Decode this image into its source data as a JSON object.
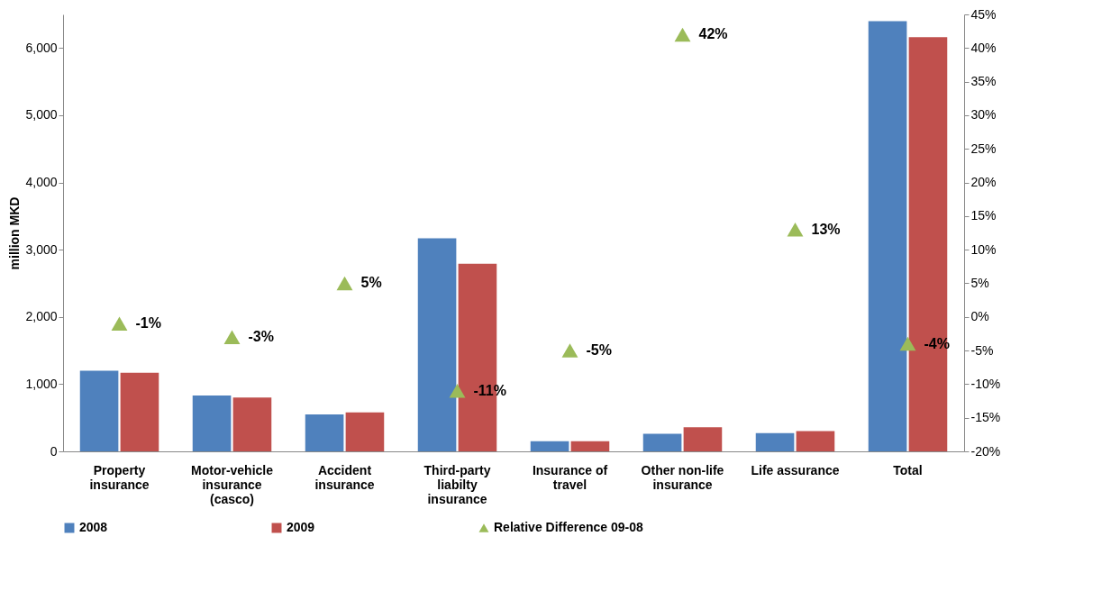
{
  "chart_data": {
    "type": "bar",
    "ylabel": "million MKD",
    "categories": [
      "Property insurance",
      "Motor-vehicle insurance (casco)",
      "Accident insurance",
      "Third-party liabilty insurance",
      "Insurance of travel",
      "Other non-life insurance",
      "Life assurance",
      "Total"
    ],
    "series": [
      {
        "name": "2008",
        "color": "#4f81bd",
        "values": [
          1200,
          830,
          550,
          3170,
          150,
          260,
          270,
          6400
        ]
      },
      {
        "name": "2009",
        "color": "#c0504d",
        "values": [
          1170,
          800,
          580,
          2790,
          150,
          360,
          300,
          6160
        ]
      },
      {
        "name": "Relative Difference 09-08",
        "type": "scatter",
        "axis": "y2",
        "color": "#9bbb59",
        "values": [
          -1,
          -3,
          5,
          -11,
          -5,
          42,
          13,
          -4
        ],
        "value_labels": [
          "-1%",
          "-3%",
          "5%",
          "-11%",
          "-5%",
          "42%",
          "13%",
          "-4%"
        ]
      }
    ],
    "ylim": [
      0,
      6500
    ],
    "yticks": [
      {
        "value": 0,
        "label": "0"
      },
      {
        "value": 1000,
        "label": "1,000"
      },
      {
        "value": 2000,
        "label": "2,000"
      },
      {
        "value": 3000,
        "label": "3,000"
      },
      {
        "value": 4000,
        "label": "4,000"
      },
      {
        "value": 5000,
        "label": "5,000"
      },
      {
        "value": 6000,
        "label": "6,000"
      }
    ],
    "y2lim": [
      -20,
      45
    ],
    "y2ticks": [
      {
        "value": -20,
        "label": "-20%"
      },
      {
        "value": -15,
        "label": "-15%"
      },
      {
        "value": -10,
        "label": "-10%"
      },
      {
        "value": -5,
        "label": "-5%"
      },
      {
        "value": 0,
        "label": "0%"
      },
      {
        "value": 5,
        "label": "5%"
      },
      {
        "value": 10,
        "label": "10%"
      },
      {
        "value": 15,
        "label": "15%"
      },
      {
        "value": 20,
        "label": "20%"
      },
      {
        "value": 25,
        "label": "25%"
      },
      {
        "value": 30,
        "label": "30%"
      },
      {
        "value": 35,
        "label": "35%"
      },
      {
        "value": 40,
        "label": "40%"
      },
      {
        "value": 45,
        "label": "45%"
      }
    ],
    "grid": false,
    "legend": "bottom",
    "marker": "triangle"
  }
}
